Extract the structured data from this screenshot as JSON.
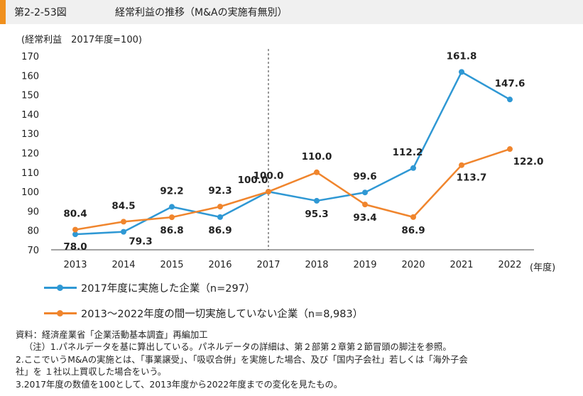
{
  "header": {
    "figure_number": "第2-2-53図",
    "title": "経常利益の推移（M&Aの実施有無別）"
  },
  "chart_data": {
    "type": "line",
    "ylabel": "(経常利益　2017年度=100)",
    "xlabel": "(年度)",
    "categories": [
      "2013",
      "2014",
      "2015",
      "2016",
      "2017",
      "2018",
      "2019",
      "2020",
      "2021",
      "2022"
    ],
    "ylim": [
      70,
      170
    ],
    "yticks": [
      70,
      80,
      90,
      100,
      110,
      120,
      130,
      140,
      150,
      160,
      170
    ],
    "reference_line_category": "2017",
    "series": [
      {
        "name": "2017年度に実施した企業（n=297）",
        "color": "#2f98d4",
        "values": [
          78.0,
          79.3,
          92.2,
          86.9,
          100.0,
          95.3,
          99.6,
          112.2,
          161.8,
          147.6
        ],
        "labels": [
          "78.0",
          "79.3",
          "92.2",
          "86.9",
          "100.0",
          "95.3",
          "99.6",
          "112.2",
          "161.8",
          "147.6"
        ]
      },
      {
        "name": "2013～2022年度の間一切実施していない企業（n=8,983）",
        "color": "#f0852d",
        "values": [
          80.4,
          84.5,
          86.8,
          92.3,
          100.0,
          110.0,
          93.4,
          86.9,
          113.7,
          122.0
        ],
        "labels": [
          "80.4",
          "84.5",
          "86.8",
          "92.3",
          "",
          "110.0",
          "93.4",
          "86.9",
          "113.7",
          "122.0"
        ]
      }
    ]
  },
  "notes": {
    "source": "資料：経済産業省「企業活動基本調査」再編加工",
    "note1": "（注）1.パネルデータを基に算出している。パネルデータの詳細は、第２部第２章第２節冒頭の脚注を参照。",
    "note2a": "2.ここでいうM&Aの実施とは、「事業譲受」、「吸収合併」を実施した場合、及び「国内子会社」若しくは「海外子会",
    "note2b": "社」を １社以上買収した場合をいう。",
    "note3": "3.2017年度の数値を100として、2013年度から2022年度までの変化を見たもの。"
  }
}
